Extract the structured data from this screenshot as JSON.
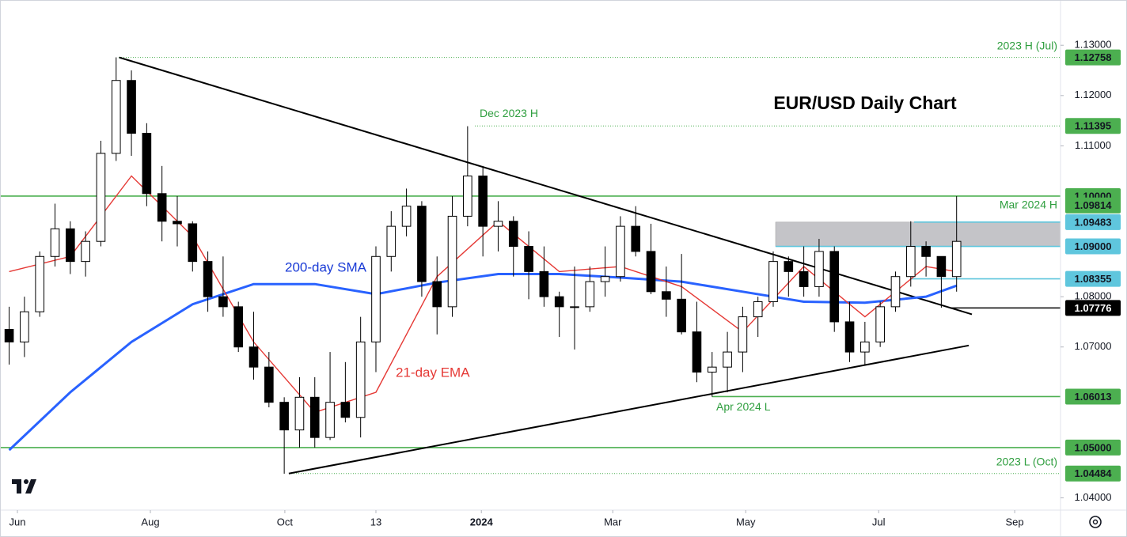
{
  "chart_data": {
    "type": "candlestick",
    "title": "EUR/USD Daily Chart",
    "categories": [
      null,
      null,
      null,
      null,
      null,
      null,
      null,
      null,
      null,
      null,
      null,
      null,
      null,
      null,
      null,
      null,
      null,
      null,
      null,
      null,
      null,
      null,
      null,
      null,
      null,
      null,
      null,
      null,
      null,
      null,
      null,
      null,
      null,
      null,
      null,
      null,
      null,
      null,
      null,
      null,
      null,
      null,
      null,
      null,
      null,
      null,
      null,
      null,
      null,
      null,
      null,
      null,
      null,
      null,
      null,
      null,
      null,
      null,
      null,
      null,
      null,
      null,
      null
    ],
    "open": [
      1.0735,
      1.071,
      1.077,
      1.088,
      1.0935,
      1.087,
      1.091,
      1.1085,
      1.123,
      1.1125,
      1.1005,
      1.095,
      1.0945,
      1.087,
      1.08,
      1.078,
      1.07,
      1.066,
      1.059,
      1.0535,
      1.06,
      1.052,
      1.059,
      1.056,
      1.071,
      1.088,
      1.094,
      1.098,
      1.083,
      1.078,
      1.096,
      1.104,
      1.094,
      1.095,
      1.09,
      1.085,
      1.08,
      1.078,
      1.078,
      1.083,
      1.084,
      1.094,
      1.089,
      1.081,
      1.0795,
      1.073,
      1.065,
      1.066,
      1.069,
      1.076,
      1.079,
      1.087,
      1.085,
      1.082,
      1.089,
      1.075,
      1.069,
      1.071,
      1.078,
      1.084,
      1.09,
      1.088,
      1.084
    ],
    "high": [
      1.078,
      1.08,
      1.089,
      1.0985,
      1.095,
      1.093,
      1.111,
      1.1276,
      1.125,
      1.1145,
      1.106,
      1.1,
      1.095,
      1.089,
      1.088,
      1.079,
      1.077,
      1.069,
      1.06,
      1.064,
      1.064,
      1.069,
      1.067,
      1.076,
      1.09,
      1.097,
      1.1015,
      1.099,
      1.088,
      1.1,
      1.1139,
      1.106,
      1.099,
      1.096,
      1.093,
      1.09,
      1.081,
      1.086,
      1.086,
      1.09,
      1.096,
      1.098,
      1.0945,
      1.086,
      1.0885,
      1.079,
      1.069,
      1.073,
      1.078,
      1.08,
      1.089,
      1.088,
      1.09,
      1.0915,
      1.09,
      1.079,
      1.075,
      1.079,
      1.085,
      1.095,
      1.091,
      1.088,
      1.1
    ],
    "low": [
      1.0665,
      1.068,
      1.076,
      1.086,
      1.0845,
      1.084,
      1.09,
      1.107,
      1.108,
      1.098,
      1.091,
      1.09,
      1.085,
      1.077,
      1.076,
      1.069,
      1.0635,
      1.058,
      1.0448,
      1.05,
      1.05,
      1.0515,
      1.055,
      1.052,
      1.065,
      1.085,
      1.092,
      1.08,
      1.0725,
      1.076,
      1.094,
      1.088,
      1.089,
      1.084,
      1.0795,
      1.078,
      1.072,
      1.0695,
      1.077,
      1.08,
      1.083,
      1.088,
      1.0805,
      1.076,
      1.0725,
      1.063,
      1.0601,
      1.061,
      1.065,
      1.072,
      1.078,
      1.08,
      1.08,
      1.08,
      1.073,
      1.067,
      1.0665,
      1.07,
      1.077,
      1.082,
      1.084,
      1.0778,
      1.081
    ],
    "close": [
      1.071,
      1.077,
      1.088,
      1.0935,
      1.087,
      1.091,
      1.1085,
      1.123,
      1.1125,
      1.1005,
      1.095,
      1.0945,
      1.087,
      1.08,
      1.078,
      1.07,
      1.066,
      1.059,
      1.0535,
      1.06,
      1.052,
      1.059,
      1.056,
      1.071,
      1.088,
      1.094,
      1.098,
      1.083,
      1.078,
      1.096,
      1.104,
      1.094,
      1.095,
      1.09,
      1.085,
      1.08,
      1.078,
      1.078,
      1.083,
      1.084,
      1.094,
      1.089,
      1.081,
      1.0795,
      1.073,
      1.065,
      1.066,
      1.069,
      1.076,
      1.079,
      1.087,
      1.085,
      1.082,
      1.089,
      1.075,
      1.069,
      1.071,
      1.078,
      1.084,
      1.09,
      1.088,
      1.084,
      1.091
    ],
    "up_color": "#ffffff",
    "down_color": "#000000",
    "lines": [
      {
        "name": "200-day SMA",
        "color": "#2962ff",
        "x": [
          0,
          4,
          8,
          12,
          16,
          20,
          24,
          28,
          32,
          36,
          40,
          44,
          48,
          52,
          56,
          60,
          62
        ],
        "values": [
          1.0495,
          1.061,
          1.071,
          1.0785,
          1.0825,
          1.0825,
          1.0805,
          1.0828,
          1.0845,
          1.0845,
          1.0838,
          1.083,
          1.081,
          1.079,
          1.0788,
          1.08,
          1.0822
        ]
      },
      {
        "name": "21-day EMA",
        "color": "#e53935",
        "x": [
          0,
          4,
          8,
          12,
          16,
          20,
          24,
          28,
          32,
          36,
          40,
          44,
          48,
          52,
          56,
          60,
          62
        ],
        "values": [
          1.085,
          1.088,
          1.104,
          1.092,
          1.071,
          1.057,
          1.061,
          1.084,
          1.095,
          1.085,
          1.086,
          1.082,
          1.073,
          1.086,
          1.076,
          1.086,
          1.085
        ]
      }
    ],
    "trendlines": [
      {
        "x": [
          7.2,
          63
        ],
        "values": [
          1.12758,
          1.0765
        ]
      },
      {
        "x": [
          18.3,
          62.8
        ],
        "values": [
          1.04484,
          1.0703
        ]
      }
    ],
    "zone": {
      "from": 1.09,
      "to": 1.09483,
      "color": "#c4c4c8"
    },
    "levels": [
      {
        "value": 1.12758,
        "label": "1.12758",
        "color": "#4caf50",
        "style": "dotted",
        "note": "2023 H (Jul)"
      },
      {
        "value": 1.11395,
        "label": "1.11395",
        "color": "#4caf50",
        "style": "dotted",
        "note": "Dec 2023 H"
      },
      {
        "value": 1.1,
        "label": "1.10000",
        "color": "#4caf50",
        "style": "solid"
      },
      {
        "value": 1.09814,
        "label": "1.09814",
        "color": "#4caf50",
        "style": "dotted",
        "note": "Mar 2024 H"
      },
      {
        "value": 1.09483,
        "label": "1.09483",
        "color": "#5fc6dd",
        "style": "solid"
      },
      {
        "value": 1.09,
        "label": "1.09000",
        "color": "#5fc6dd",
        "style": "solid"
      },
      {
        "value": 1.08355,
        "label": "1.08355",
        "color": "#5fc6dd",
        "style": "solid"
      },
      {
        "value": 1.07776,
        "label": "1.07776",
        "color": "#000000",
        "style": "solid"
      },
      {
        "value": 1.06013,
        "label": "1.06013",
        "color": "#4caf50",
        "style": "solid",
        "note": "Apr 2024 L"
      },
      {
        "value": 1.05,
        "label": "1.05000",
        "color": "#4caf50",
        "style": "solid"
      },
      {
        "value": 1.04484,
        "label": "1.04484",
        "color": "#4caf50",
        "style": "dotted",
        "note": "2023 L (Oct)"
      }
    ],
    "xlim": [
      -0.6,
      68.8
    ],
    "xticks": [
      {
        "value": 0.54,
        "label": "Jun"
      },
      {
        "value": 9.24,
        "label": "Aug"
      },
      {
        "value": 18.04,
        "label": "Oct"
      },
      {
        "value": 24.0,
        "label": "13"
      },
      {
        "value": 30.9,
        "label": "2024"
      },
      {
        "value": 39.5,
        "label": "Mar"
      },
      {
        "value": 48.2,
        "label": "May"
      },
      {
        "value": 56.9,
        "label": "Jul"
      },
      {
        "value": 65.8,
        "label": "Sep"
      }
    ],
    "ylim": [
      1.0352,
      1.139
    ],
    "yticks": [
      {
        "value": 1.13,
        "label": "1.13000"
      },
      {
        "value": 1.12,
        "label": "1.12000"
      },
      {
        "value": 1.11,
        "label": "1.11000"
      },
      {
        "value": 1.08,
        "label": "1.08000"
      },
      {
        "value": 1.07,
        "label": "1.07000"
      },
      {
        "value": 1.04,
        "label": "1.04000"
      }
    ]
  }
}
